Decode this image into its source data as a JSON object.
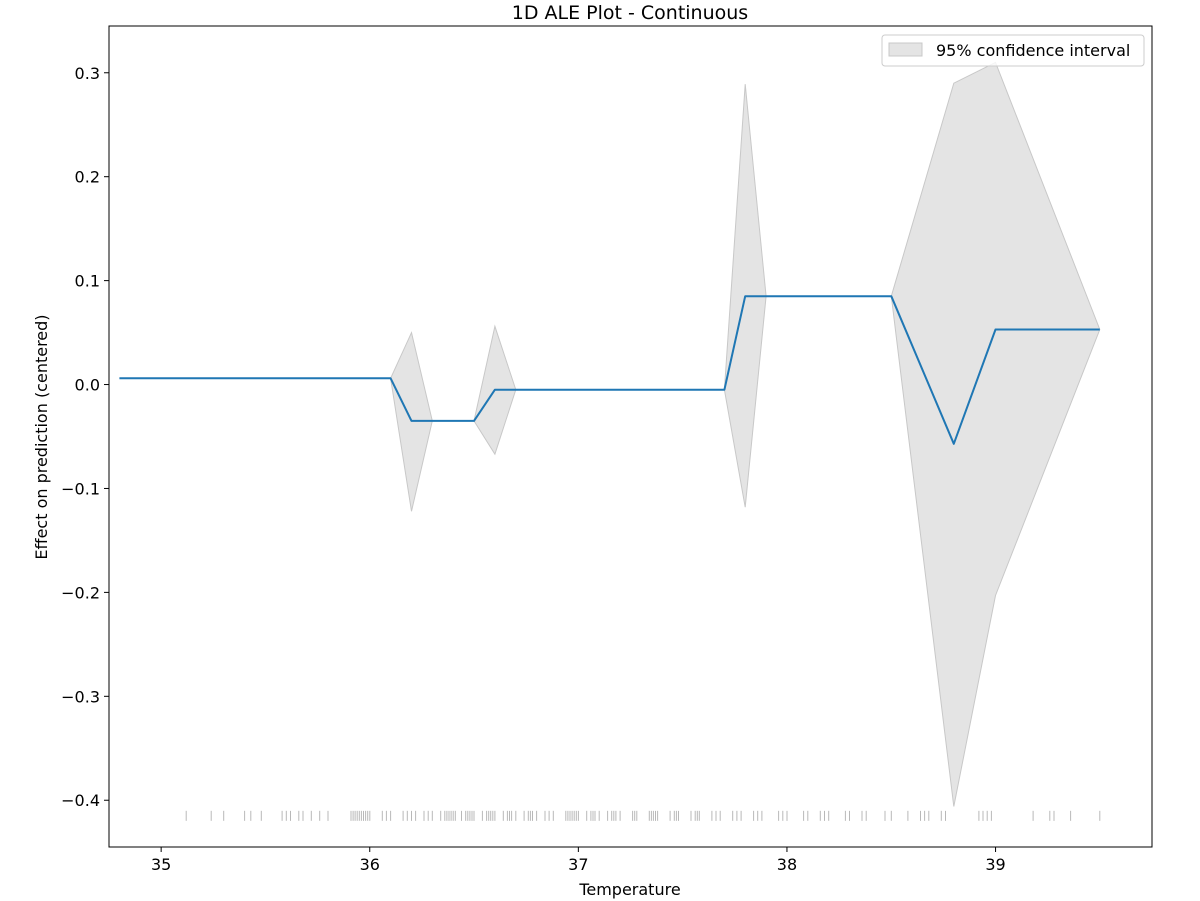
{
  "chart_data": {
    "type": "line",
    "title": "1D ALE Plot - Continuous",
    "xlabel": "Temperature",
    "ylabel": "Effect on prediction (centered)",
    "xlim": [
      34.75,
      39.75
    ],
    "ylim": [
      -0.445,
      0.345
    ],
    "x_ticks": [
      35,
      36,
      37,
      38,
      39
    ],
    "x_tick_labels": [
      "35",
      "36",
      "37",
      "38",
      "39"
    ],
    "y_ticks": [
      -0.4,
      -0.3,
      -0.2,
      -0.1,
      0.0,
      0.1,
      0.2,
      0.3
    ],
    "y_tick_labels": [
      "−0.4",
      "−0.3",
      "−0.2",
      "−0.1",
      "0.0",
      "0.1",
      "0.2",
      "0.3"
    ],
    "grid": false,
    "legend": {
      "position": "top-right",
      "entries": [
        "95% confidence interval"
      ]
    },
    "colors": {
      "line": "#1f77b4",
      "band": "#d9d9d9",
      "band_edge": "#c8c8c8",
      "rug": "#000000"
    },
    "series": [
      {
        "type": "line",
        "x": [
          34.8,
          36.1,
          36.2,
          36.5,
          36.6,
          37.7,
          37.8,
          38.5,
          38.8,
          39.0,
          39.5
        ],
        "y": [
          0.006,
          0.006,
          -0.035,
          -0.035,
          -0.005,
          -0.005,
          0.085,
          0.085,
          -0.057,
          0.053,
          0.053
        ]
      }
    ],
    "confidence_band": {
      "name": "95% confidence interval",
      "segments": [
        {
          "x": [
            36.1,
            36.2,
            36.3
          ],
          "upper": [
            0.006,
            0.05,
            -0.035
          ],
          "lower": [
            0.006,
            -0.122,
            -0.035
          ]
        },
        {
          "x": [
            36.5,
            36.6,
            36.7
          ],
          "upper": [
            -0.035,
            0.056,
            -0.005
          ],
          "lower": [
            -0.035,
            -0.067,
            -0.005
          ]
        },
        {
          "x": [
            37.7,
            37.8,
            37.9
          ],
          "upper": [
            -0.005,
            0.289,
            0.085
          ],
          "lower": [
            -0.005,
            -0.118,
            0.085
          ]
        },
        {
          "x": [
            38.5,
            38.8,
            39.0,
            39.5
          ],
          "upper": [
            0.085,
            0.29,
            0.31,
            0.053
          ],
          "lower": [
            0.085,
            -0.406,
            -0.203,
            0.053
          ]
        }
      ]
    },
    "rug": {
      "y": -0.415,
      "x": [
        35.12,
        35.24,
        35.3,
        35.4,
        35.43,
        35.48,
        35.58,
        35.6,
        35.62,
        35.66,
        35.68,
        35.72,
        35.76,
        35.8,
        35.91,
        35.92,
        35.93,
        35.94,
        35.95,
        35.96,
        35.97,
        35.98,
        35.99,
        36.0,
        36.06,
        36.08,
        36.1,
        36.16,
        36.18,
        36.2,
        36.22,
        36.26,
        36.28,
        36.3,
        36.34,
        36.36,
        36.37,
        36.38,
        36.39,
        36.4,
        36.41,
        36.44,
        36.46,
        36.47,
        36.48,
        36.49,
        36.5,
        36.54,
        36.56,
        36.57,
        36.58,
        36.59,
        36.6,
        36.64,
        36.66,
        36.67,
        36.68,
        36.7,
        36.74,
        36.76,
        36.77,
        36.78,
        36.8,
        36.84,
        36.86,
        36.88,
        36.94,
        36.95,
        36.96,
        36.97,
        36.98,
        36.99,
        37.0,
        37.04,
        37.06,
        37.07,
        37.08,
        37.1,
        37.14,
        37.16,
        37.17,
        37.18,
        37.2,
        37.26,
        37.27,
        37.28,
        37.34,
        37.35,
        37.36,
        37.37,
        37.38,
        37.44,
        37.46,
        37.47,
        37.48,
        37.54,
        37.56,
        37.57,
        37.58,
        37.64,
        37.66,
        37.68,
        37.74,
        37.76,
        37.78,
        37.84,
        37.86,
        37.88,
        37.96,
        37.98,
        38.0,
        38.08,
        38.1,
        38.16,
        38.18,
        38.2,
        38.28,
        38.3,
        38.36,
        38.38,
        38.47,
        38.5,
        38.58,
        38.64,
        38.66,
        38.68,
        38.74,
        38.76,
        38.92,
        38.94,
        38.96,
        38.98,
        39.18,
        39.26,
        39.28,
        39.36,
        39.5
      ]
    }
  }
}
